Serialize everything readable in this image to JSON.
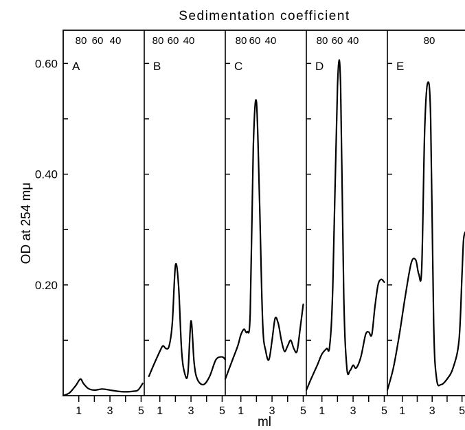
{
  "chart_data": {
    "type": "line",
    "title": "Sedimentation coefficient",
    "ylabel": "OD at 254 mμ",
    "xlabel": "ml",
    "ylim": [
      0,
      0.66
    ],
    "xlim": [
      0,
      5.2
    ],
    "yticks": [
      0.1,
      0.2,
      0.3,
      0.4,
      0.5,
      0.6
    ],
    "ytick_labels": [
      "0.60",
      "0.40",
      "0.20"
    ],
    "xticks": [
      1,
      2,
      3,
      4,
      5
    ],
    "xtick_labels": [
      "1",
      "3",
      "5"
    ],
    "grid": false,
    "legend": "none",
    "line_color": "#000000",
    "panels": [
      {
        "label": "A",
        "top_labels": [
          "80",
          "60",
          "40"
        ],
        "x": [
          0,
          0.4,
          0.8,
          1.1,
          1.3,
          1.6,
          2.0,
          2.5,
          3.0,
          3.5,
          4.0,
          4.5,
          4.8,
          5.1
        ],
        "y": [
          0,
          0.005,
          0.018,
          0.03,
          0.022,
          0.013,
          0.01,
          0.012,
          0.01,
          0.008,
          0.007,
          0.008,
          0.01,
          0.022
        ]
      },
      {
        "label": "B",
        "top_labels": [
          "80",
          "60",
          "40"
        ],
        "x": [
          0.3,
          0.6,
          1.0,
          1.2,
          1.4,
          1.6,
          1.8,
          2.0,
          2.2,
          2.4,
          2.6,
          2.8,
          3.0,
          3.2,
          3.4,
          3.8,
          4.2,
          4.6,
          5.0,
          5.2
        ],
        "y": [
          0.035,
          0.055,
          0.08,
          0.09,
          0.085,
          0.09,
          0.13,
          0.235,
          0.2,
          0.08,
          0.04,
          0.04,
          0.135,
          0.06,
          0.03,
          0.02,
          0.035,
          0.065,
          0.07,
          0.065
        ]
      },
      {
        "label": "C",
        "top_labels": [
          "80",
          "60",
          "40"
        ],
        "x": [
          0,
          0.4,
          0.8,
          1.0,
          1.2,
          1.4,
          1.6,
          1.8,
          2.0,
          2.2,
          2.4,
          2.6,
          2.8,
          3.0,
          3.2,
          3.4,
          3.6,
          3.8,
          4.0,
          4.2,
          4.4,
          4.6,
          4.8,
          5.0
        ],
        "y": [
          0.03,
          0.06,
          0.09,
          0.11,
          0.12,
          0.115,
          0.15,
          0.45,
          0.53,
          0.35,
          0.13,
          0.08,
          0.065,
          0.1,
          0.14,
          0.13,
          0.1,
          0.08,
          0.09,
          0.1,
          0.085,
          0.08,
          0.12,
          0.165
        ]
      },
      {
        "label": "D",
        "top_labels": [
          "80",
          "60",
          "40"
        ],
        "x": [
          0,
          0.3,
          0.7,
          1.0,
          1.3,
          1.5,
          1.7,
          2.0,
          2.2,
          2.4,
          2.6,
          2.8,
          3.0,
          3.2,
          3.5,
          3.8,
          4.0,
          4.2,
          4.4,
          4.6,
          4.8,
          5.0
        ],
        "y": [
          0.01,
          0.03,
          0.055,
          0.075,
          0.085,
          0.09,
          0.2,
          0.56,
          0.56,
          0.18,
          0.05,
          0.045,
          0.055,
          0.05,
          0.07,
          0.11,
          0.115,
          0.11,
          0.16,
          0.2,
          0.21,
          0.205
        ]
      },
      {
        "label": "E",
        "top_labels": [
          "80"
        ],
        "x": [
          0,
          0.4,
          0.8,
          1.2,
          1.6,
          1.9,
          2.1,
          2.3,
          2.5,
          2.7,
          2.9,
          3.1,
          3.3,
          3.6,
          4.0,
          4.4,
          4.8,
          5.0,
          5.1,
          5.2
        ],
        "y": [
          0.01,
          0.05,
          0.11,
          0.18,
          0.24,
          0.245,
          0.22,
          0.23,
          0.48,
          0.565,
          0.5,
          0.13,
          0.03,
          0.02,
          0.03,
          0.05,
          0.1,
          0.22,
          0.28,
          0.295
        ]
      }
    ]
  }
}
